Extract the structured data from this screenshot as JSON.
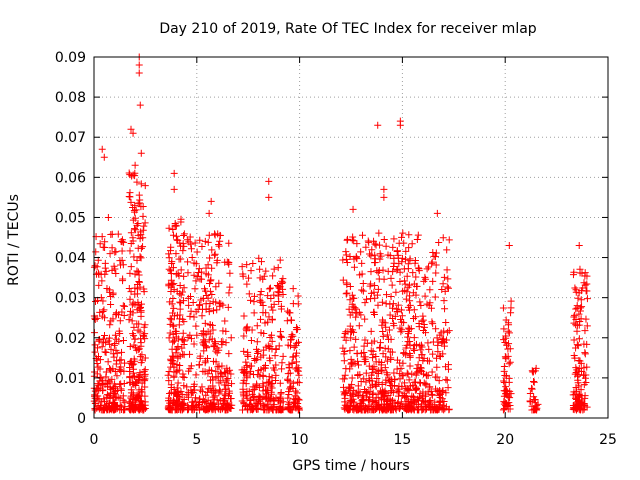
{
  "chart_data": {
    "type": "scatter",
    "title": "Day 210 of 2019, Rate Of TEC Index for receiver mlap",
    "xlabel": "GPS time / hours",
    "ylabel": "ROTI / TECUs",
    "xlim": [
      0,
      25
    ],
    "ylim": [
      0,
      0.09
    ],
    "x_ticks": [
      0,
      5,
      10,
      15,
      20,
      25
    ],
    "x_tick_labels": [
      "0",
      "5",
      "10",
      "15",
      "20",
      "25"
    ],
    "y_ticks": [
      0,
      0.01,
      0.02,
      0.03,
      0.04,
      0.05,
      0.06,
      0.07,
      0.08,
      0.09
    ],
    "y_tick_labels": [
      "0",
      "0.01",
      "0.02",
      "0.03",
      "0.04",
      "0.05",
      "0.06",
      "0.07",
      "0.08",
      "0.09"
    ],
    "grid": true,
    "marker": "+",
    "series": [
      {
        "name": "ROTI",
        "color": "#ff0000",
        "clusters": [
          {
            "x_start": 0.0,
            "x_end": 1.5,
            "y_max": 0.046,
            "density": 260
          },
          {
            "x_start": 1.7,
            "x_end": 2.5,
            "y_max": 0.062,
            "density": 240
          },
          {
            "x_start": 3.6,
            "x_end": 4.4,
            "y_max": 0.05,
            "density": 200
          },
          {
            "x_start": 4.5,
            "x_end": 6.7,
            "y_max": 0.046,
            "density": 320
          },
          {
            "x_start": 7.2,
            "x_end": 9.2,
            "y_max": 0.04,
            "density": 280
          },
          {
            "x_start": 9.4,
            "x_end": 10.0,
            "y_max": 0.033,
            "density": 90
          },
          {
            "x_start": 12.1,
            "x_end": 13.6,
            "y_max": 0.046,
            "density": 240
          },
          {
            "x_start": 13.6,
            "x_end": 15.4,
            "y_max": 0.047,
            "density": 320
          },
          {
            "x_start": 15.4,
            "x_end": 17.3,
            "y_max": 0.046,
            "density": 260
          },
          {
            "x_start": 19.9,
            "x_end": 20.3,
            "y_max": 0.03,
            "density": 60
          },
          {
            "x_start": 21.2,
            "x_end": 21.6,
            "y_max": 0.014,
            "density": 30
          },
          {
            "x_start": 23.3,
            "x_end": 24.0,
            "y_max": 0.038,
            "density": 130
          }
        ],
        "peaks": [
          {
            "x": 0.4,
            "y": 0.067
          },
          {
            "x": 0.5,
            "y": 0.065
          },
          {
            "x": 0.7,
            "y": 0.05
          },
          {
            "x": 1.8,
            "y": 0.072
          },
          {
            "x": 1.9,
            "y": 0.071
          },
          {
            "x": 2.0,
            "y": 0.063
          },
          {
            "x": 2.2,
            "y": 0.09
          },
          {
            "x": 2.2,
            "y": 0.088
          },
          {
            "x": 2.2,
            "y": 0.086
          },
          {
            "x": 2.25,
            "y": 0.078
          },
          {
            "x": 2.3,
            "y": 0.066
          },
          {
            "x": 3.9,
            "y": 0.061
          },
          {
            "x": 3.9,
            "y": 0.057
          },
          {
            "x": 5.7,
            "y": 0.054
          },
          {
            "x": 5.6,
            "y": 0.051
          },
          {
            "x": 8.5,
            "y": 0.059
          },
          {
            "x": 8.5,
            "y": 0.055
          },
          {
            "x": 12.6,
            "y": 0.052
          },
          {
            "x": 13.8,
            "y": 0.073
          },
          {
            "x": 14.1,
            "y": 0.057
          },
          {
            "x": 14.1,
            "y": 0.055
          },
          {
            "x": 14.9,
            "y": 0.074
          },
          {
            "x": 14.9,
            "y": 0.073
          },
          {
            "x": 16.7,
            "y": 0.051
          },
          {
            "x": 20.2,
            "y": 0.043
          },
          {
            "x": 23.6,
            "y": 0.043
          }
        ]
      }
    ]
  }
}
